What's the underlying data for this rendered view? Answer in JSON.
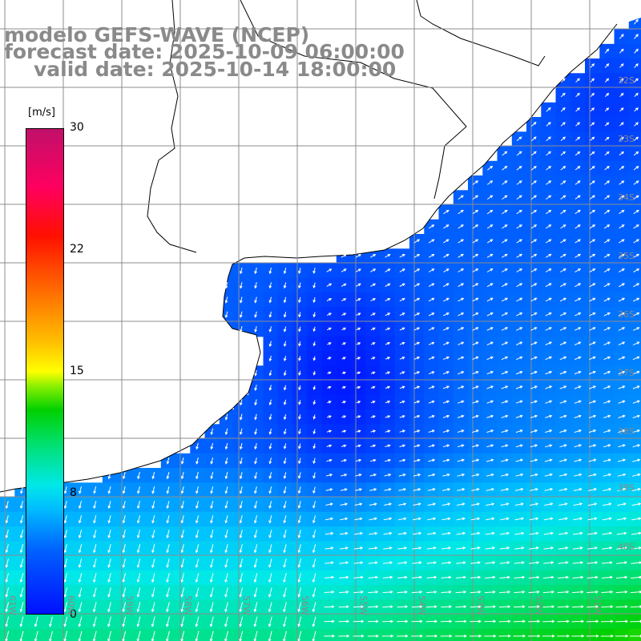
{
  "header": {
    "model": "modelo GEFS-WAVE (NCEP)",
    "forecast": "forecast date: 2025-10-09 06:00:00",
    "valid": "valid date: 2025-10-14 18:00:00"
  },
  "colorbar": {
    "unit": "[m/s]",
    "ticks": [
      "30",
      "22",
      "15",
      "8",
      "0"
    ],
    "tick_values": [
      30,
      22,
      15,
      8,
      0
    ]
  },
  "lat_labels": [
    "32S",
    "33S",
    "34S",
    "35S",
    "36S",
    "37S",
    "38S",
    "39S",
    "40S"
  ],
  "lon_labels": [
    "61W",
    "60W",
    "59W",
    "58W",
    "57W",
    "56W",
    "55W",
    "54W",
    "53W",
    "52W",
    "51W"
  ],
  "colors": {
    "land": "#ffffff",
    "coast": "#000000",
    "grid": "#8c8c8c",
    "arrows": "#ffffff",
    "label_gray": "#8a8a8a"
  }
}
